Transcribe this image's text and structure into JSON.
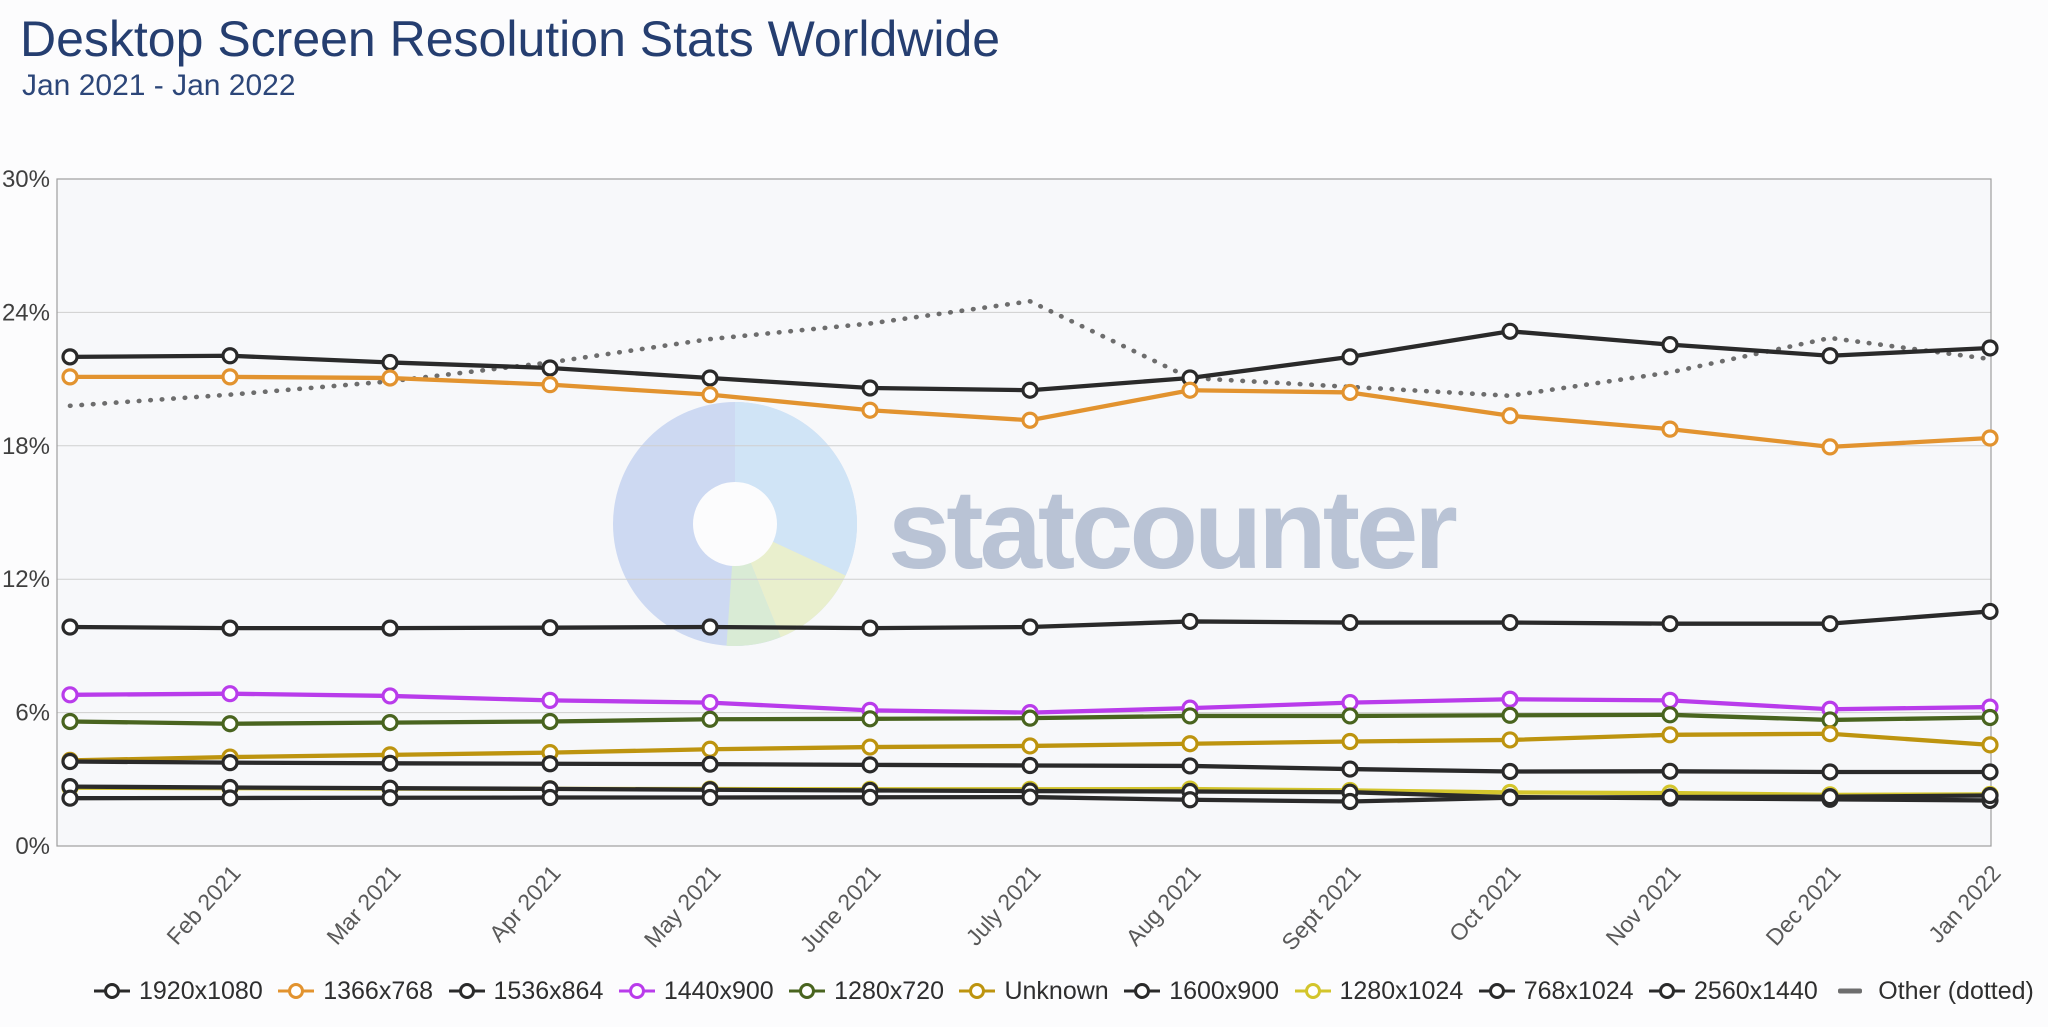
{
  "header": {
    "title": "Desktop Screen Resolution Stats Worldwide",
    "subtitle": "Jan 2021 - Jan 2022",
    "title_color": "#253e70"
  },
  "watermark": {
    "text": "statcounter",
    "text_color": "#b9c3d5",
    "logo_colors": {
      "base_blue": "#cdd9f2",
      "light_blue": "#d0e4f6",
      "pale_yellow": "#e9efcd",
      "pale_green": "#d9ebd5"
    }
  },
  "chart_data": {
    "type": "line",
    "title": "Desktop Screen Resolution Stats Worldwide",
    "subtitle": "Jan 2021 - Jan 2022",
    "months": [
      "Jan 2021",
      "Feb 2021",
      "Mar 2021",
      "Apr 2021",
      "May 2021",
      "June 2021",
      "July 2021",
      "Aug 2021",
      "Sept 2021",
      "Oct 2021",
      "Nov 2021",
      "Dec 2021",
      "Jan 2022"
    ],
    "x_tick_labels": [
      "Feb 2021",
      "Mar 2021",
      "Apr 2021",
      "May 2021",
      "June 2021",
      "July 2021",
      "Aug 2021",
      "Sept 2021",
      "Oct 2021",
      "Nov 2021",
      "Dec 2021",
      "Jan 2022"
    ],
    "y_ticks": [
      "0%",
      "6%",
      "12%",
      "18%",
      "24%",
      "30%"
    ],
    "ylim": [
      0,
      30
    ],
    "grid": "horizontal",
    "legend_position": "bottom",
    "series": [
      {
        "name": "1920x1080",
        "color": "#2a2a2a",
        "style": "solid",
        "marker": "circle",
        "values": [
          22.0,
          22.05,
          21.75,
          21.5,
          21.05,
          20.6,
          20.5,
          21.05,
          22.0,
          23.15,
          22.55,
          22.05,
          22.4
        ]
      },
      {
        "name": "1366x768",
        "color": "#e2932f",
        "style": "solid",
        "marker": "circle",
        "values": [
          21.1,
          21.1,
          21.05,
          20.75,
          20.3,
          19.6,
          19.15,
          20.5,
          20.4,
          19.35,
          18.75,
          17.95,
          18.35
        ]
      },
      {
        "name": "1536x864",
        "color": "#2a2a2a",
        "style": "solid",
        "marker": "circle",
        "values": [
          9.85,
          9.8,
          9.8,
          9.82,
          9.85,
          9.8,
          9.85,
          10.1,
          10.05,
          10.05,
          10.0,
          10.0,
          10.55
        ]
      },
      {
        "name": "1440x900",
        "color": "#b93ceb",
        "style": "solid",
        "marker": "circle",
        "values": [
          6.8,
          6.85,
          6.75,
          6.55,
          6.45,
          6.1,
          6.0,
          6.2,
          6.45,
          6.6,
          6.55,
          6.15,
          6.25
        ]
      },
      {
        "name": "1280x720",
        "color": "#49641f",
        "style": "solid",
        "marker": "circle",
        "values": [
          5.6,
          5.5,
          5.55,
          5.6,
          5.7,
          5.72,
          5.75,
          5.85,
          5.85,
          5.88,
          5.9,
          5.67,
          5.78
        ]
      },
      {
        "name": "Unknown",
        "color": "#bd940f",
        "style": "solid",
        "marker": "circle",
        "values": [
          3.85,
          4.0,
          4.1,
          4.2,
          4.35,
          4.45,
          4.5,
          4.6,
          4.7,
          4.77,
          5.0,
          5.05,
          4.55
        ]
      },
      {
        "name": "1600x900",
        "color": "#2a2a2a",
        "style": "solid",
        "marker": "circle",
        "values": [
          3.8,
          3.75,
          3.72,
          3.7,
          3.68,
          3.65,
          3.62,
          3.6,
          3.46,
          3.35,
          3.36,
          3.33,
          3.33
        ]
      },
      {
        "name": "1280x1024",
        "color": "#d3c52c",
        "style": "solid",
        "marker": "circle",
        "values": [
          2.62,
          2.6,
          2.58,
          2.57,
          2.56,
          2.55,
          2.55,
          2.56,
          2.5,
          2.41,
          2.38,
          2.3,
          2.32
        ]
      },
      {
        "name": "768x1024",
        "color": "#2a2a2a",
        "style": "solid",
        "marker": "circle",
        "values": [
          2.67,
          2.63,
          2.6,
          2.57,
          2.53,
          2.5,
          2.47,
          2.45,
          2.42,
          2.2,
          2.15,
          2.1,
          2.05
        ]
      },
      {
        "name": "2560x1440",
        "color": "#2a2a2a",
        "style": "solid",
        "marker": "circle",
        "values": [
          2.15,
          2.16,
          2.17,
          2.18,
          2.18,
          2.19,
          2.2,
          2.08,
          2.0,
          2.17,
          2.2,
          2.22,
          2.27
        ]
      },
      {
        "name": "Other (dotted)",
        "color": "#4a4a4a",
        "style": "dotted",
        "marker": "none",
        "values": [
          19.8,
          20.3,
          20.9,
          21.75,
          22.8,
          23.5,
          24.5,
          21.05,
          20.65,
          20.25,
          21.3,
          22.85,
          21.9
        ]
      }
    ]
  }
}
